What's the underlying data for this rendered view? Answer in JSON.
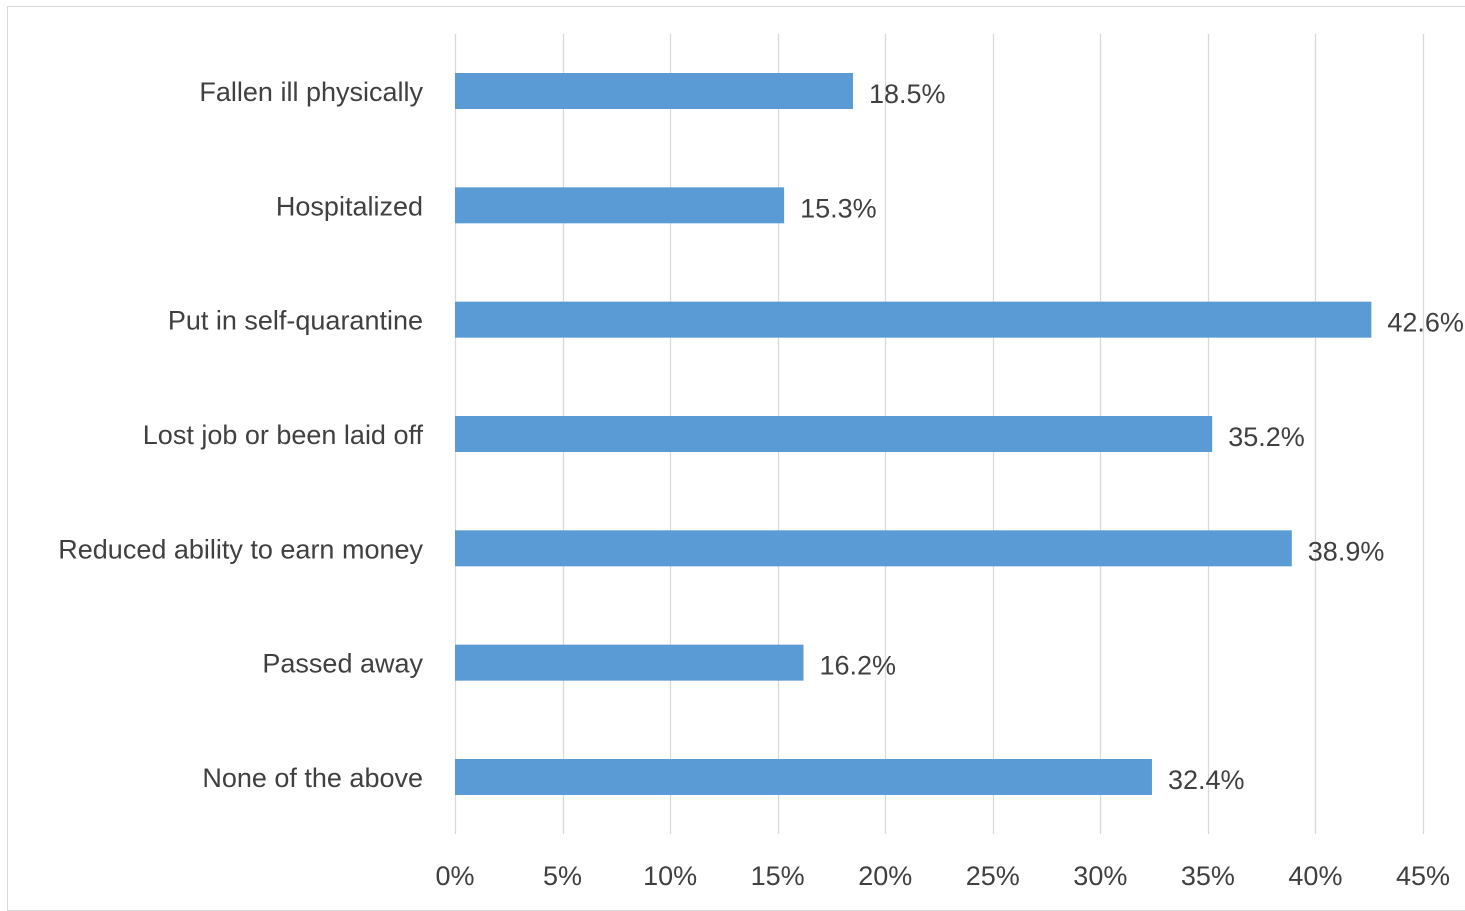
{
  "chart_data": {
    "type": "bar",
    "orientation": "horizontal",
    "categories": [
      "Fallen ill physically",
      "Hospitalized",
      "Put in self-quarantine",
      "Lost job or been laid off",
      "Reduced ability to earn money",
      "Passed away",
      "None of the above"
    ],
    "values": [
      18.5,
      15.3,
      42.6,
      35.2,
      38.9,
      16.2,
      32.4
    ],
    "data_labels": [
      "18.5%",
      "15.3%",
      "42.6%",
      "35.2%",
      "38.9%",
      "16.2%",
      "32.4%"
    ],
    "x_ticks": [
      0,
      5,
      10,
      15,
      20,
      25,
      30,
      35,
      40,
      45
    ],
    "x_tick_labels": [
      "0%",
      "5%",
      "10%",
      "15%",
      "20%",
      "25%",
      "30%",
      "35%",
      "40%",
      "45%"
    ],
    "xlim": [
      0,
      45
    ],
    "title": "",
    "xlabel": "",
    "ylabel": "",
    "grid": "vertical",
    "legend": "none",
    "bar_color": "#5b9bd5",
    "grid_color": "#d9d9d9",
    "text_color": "#404040"
  }
}
